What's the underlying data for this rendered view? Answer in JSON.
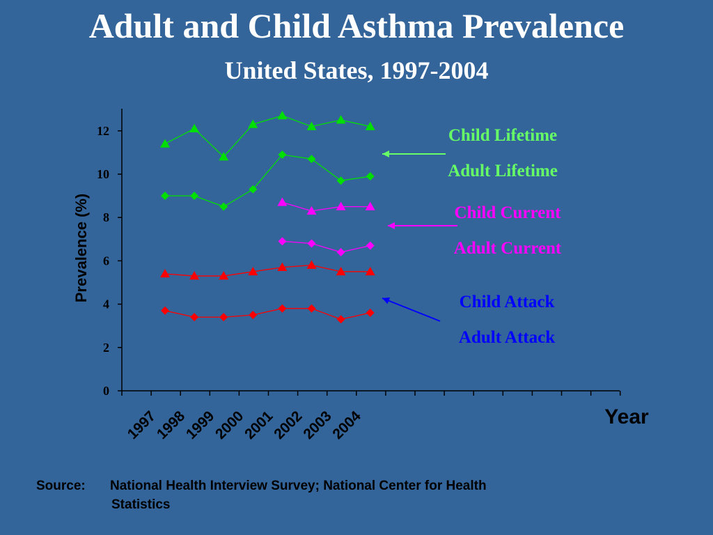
{
  "slide": {
    "title": "Adult and Child Asthma Prevalence",
    "subtitle": "United States, 1997-2004",
    "source_label": "Source:",
    "source_text_line1": "National Health Interview Survey; National Center for Health",
    "source_text_line2": "Statistics",
    "background_color": "#33659a"
  },
  "chart_data": {
    "type": "line",
    "xlabel": "Year",
    "ylabel": "Prevalence (%)",
    "ylim": [
      0,
      13
    ],
    "yticks": [
      0,
      2,
      4,
      6,
      8,
      10,
      12
    ],
    "categories": [
      "1997",
      "1998",
      "1999",
      "2000",
      "2001",
      "2002",
      "2003",
      "2004"
    ],
    "grid": false,
    "legend_placement": "right",
    "series": [
      {
        "name": "Child Lifetime",
        "group": "lifetime",
        "marker": "triangle",
        "color": "#00e000",
        "values": [
          11.4,
          12.1,
          10.8,
          12.3,
          12.7,
          12.2,
          12.5,
          12.2
        ]
      },
      {
        "name": "Adult Lifetime",
        "group": "lifetime",
        "marker": "diamond",
        "color": "#00e000",
        "values": [
          9.0,
          9.0,
          8.5,
          9.3,
          10.9,
          10.7,
          9.7,
          9.9
        ]
      },
      {
        "name": "Child Current",
        "group": "current",
        "marker": "triangle",
        "color": "#ff00ff",
        "values": [
          null,
          null,
          null,
          null,
          8.7,
          8.3,
          8.5,
          8.5
        ]
      },
      {
        "name": "Adult Current",
        "group": "current",
        "marker": "diamond",
        "color": "#ff00ff",
        "values": [
          null,
          null,
          null,
          null,
          6.9,
          6.8,
          6.4,
          6.7
        ]
      },
      {
        "name": "Child Attack",
        "group": "attack",
        "marker": "triangle",
        "color": "#ff0000",
        "values": [
          5.4,
          5.3,
          5.3,
          5.5,
          5.7,
          5.8,
          5.5,
          5.5
        ]
      },
      {
        "name": "Adult Attack",
        "group": "attack",
        "marker": "diamond",
        "color": "#ff0000",
        "values": [
          3.7,
          3.4,
          3.4,
          3.5,
          3.8,
          3.8,
          3.3,
          3.6
        ]
      }
    ],
    "legend_groups": [
      {
        "group": "lifetime",
        "labels": [
          "Child Lifetime",
          "Adult Lifetime"
        ],
        "color": "#66ff66"
      },
      {
        "group": "current",
        "labels": [
          "Child Current",
          "Adult Current"
        ],
        "color": "#ff00ff"
      },
      {
        "group": "attack",
        "labels": [
          "Child Attack",
          "Adult Attack"
        ],
        "color": "#0000ff"
      }
    ]
  }
}
